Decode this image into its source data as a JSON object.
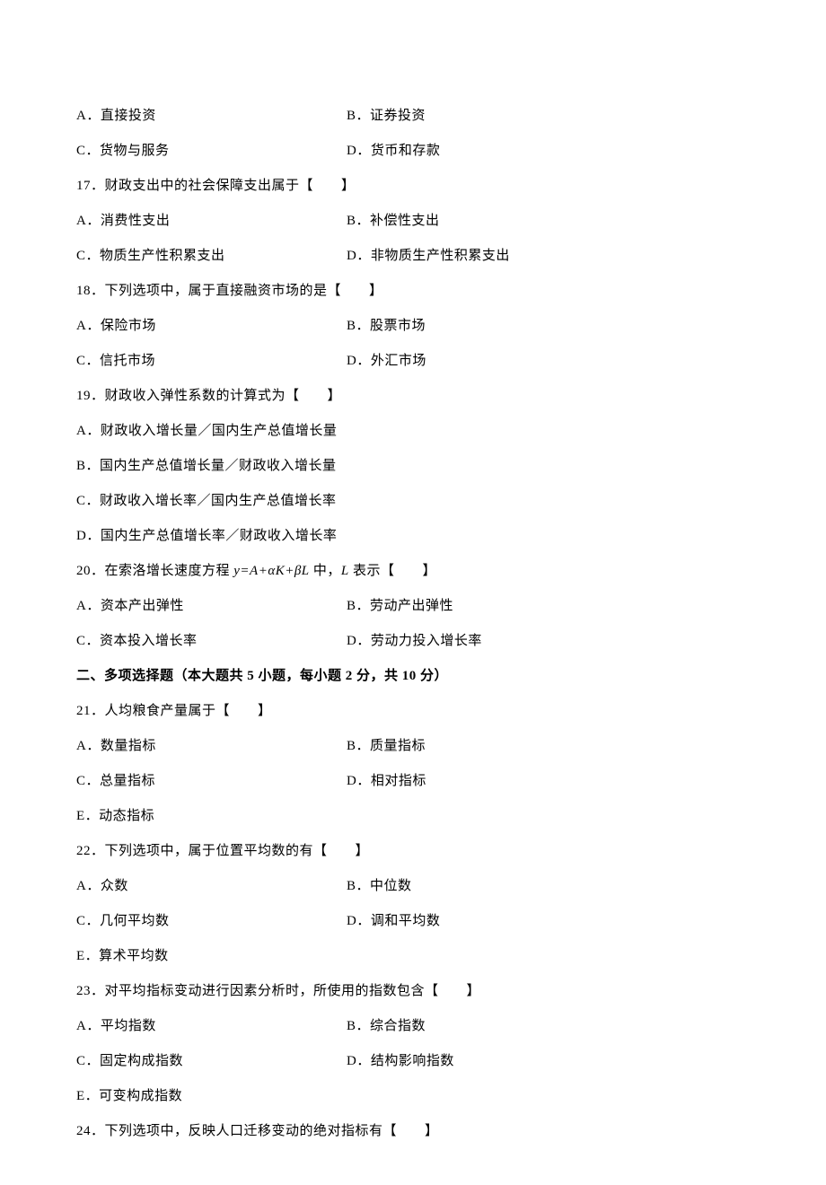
{
  "q16opts": {
    "a": "A．直接投资",
    "b": "B．证券投资",
    "c": "C．货物与服务",
    "d": "D．货币和存款"
  },
  "q17": {
    "stem": "17．财政支出中的社会保障支出属于【　　】",
    "a": "A．消费性支出",
    "b": "B．补偿性支出",
    "c": "C．物质生产性积累支出",
    "d": "D．非物质生产性积累支出"
  },
  "q18": {
    "stem": "18．下列选项中，属于直接融资市场的是【　　】",
    "a": "A．保险市场",
    "b": "B．股票市场",
    "c": "C．信托市场",
    "d": "D．外汇市场"
  },
  "q19": {
    "stem": "19．财政收入弹性系数的计算式为【　　】",
    "a": "A．财政收入增长量／国内生产总值增长量",
    "b": "B．国内生产总值增长量／财政收入增长量",
    "c": "C．财政收入增长率／国内生产总值增长率",
    "d": "D．国内生产总值增长率／财政收入增长率"
  },
  "q20": {
    "stem_pre": "20．在索洛增长速度方程 ",
    "formula": "y=A+αK+βL",
    "stem_mid": " 中，",
    "var": "L",
    "stem_post": " 表示【　　】",
    "a": "A．资本产出弹性",
    "b": "B．劳动产出弹性",
    "c": "C．资本投入增长率",
    "d": "D．劳动力投入增长率"
  },
  "section2": "二、多项选择题（本大题共 5 小题，每小题 2 分，共 10 分）",
  "q21": {
    "stem": "21．人均粮食产量属于【　　】",
    "a": "A．数量指标",
    "b": "B．质量指标",
    "c": "C．总量指标",
    "d": "D．相对指标",
    "e": "E．动态指标"
  },
  "q22": {
    "stem": "22．下列选项中，属于位置平均数的有【　　】",
    "a": "A．众数",
    "b": "B．中位数",
    "c": "C．几何平均数",
    "d": "D．调和平均数",
    "e": "E．算术平均数"
  },
  "q23": {
    "stem": "23．对平均指标变动进行因素分析时，所使用的指数包含【　　】",
    "a": "A．平均指数",
    "b": "B．综合指数",
    "c": "C．固定构成指数",
    "d": "D．结构影响指数",
    "e": "E．可变构成指数"
  },
  "q24": {
    "stem": "24．下列选项中，反映人口迁移变动的绝对指标有【　　】"
  }
}
